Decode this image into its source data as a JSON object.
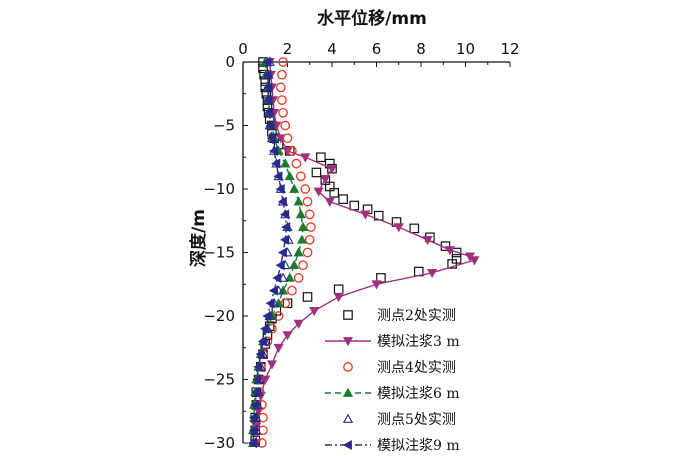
{
  "chart_data": {
    "type": "scatter",
    "title": "",
    "xlabel": "水平位移/mm",
    "ylabel": "深度/m",
    "xlim": [
      0,
      12
    ],
    "ylim": [
      -30,
      0
    ],
    "x_ticks": [
      0,
      2,
      4,
      6,
      8,
      10,
      12
    ],
    "y_ticks": [
      0,
      -5,
      -10,
      -15,
      -20,
      -25,
      -30
    ],
    "x_axis_position": "top",
    "grid": false,
    "legend_position": "bottom-right",
    "series": [
      {
        "name": "测点2处实测",
        "style": "open-square",
        "color": "#111111",
        "points": [
          [
            0.9,
            0
          ],
          [
            0.9,
            -0.5
          ],
          [
            0.95,
            -1
          ],
          [
            1.0,
            -1.5
          ],
          [
            1.0,
            -2
          ],
          [
            1.05,
            -2.5
          ],
          [
            1.1,
            -3
          ],
          [
            1.1,
            -3.5
          ],
          [
            1.15,
            -4
          ],
          [
            1.2,
            -4.5
          ],
          [
            1.3,
            -5
          ],
          [
            1.3,
            -5.5
          ],
          [
            1.4,
            -6
          ],
          [
            1.6,
            -6.5
          ],
          [
            2.1,
            -7
          ],
          [
            3.5,
            -7.5
          ],
          [
            3.9,
            -8
          ],
          [
            4.0,
            -8.4
          ],
          [
            3.3,
            -8.7
          ],
          [
            3.7,
            -9.3
          ],
          [
            3.9,
            -9.8
          ],
          [
            4.1,
            -10.3
          ],
          [
            4.5,
            -10.8
          ],
          [
            5.0,
            -11.3
          ],
          [
            5.6,
            -11.6
          ],
          [
            6.1,
            -12.1
          ],
          [
            6.9,
            -12.6
          ],
          [
            7.7,
            -13.1
          ],
          [
            8.4,
            -13.8
          ],
          [
            9.1,
            -14.5
          ],
          [
            9.6,
            -15.0
          ],
          [
            9.6,
            -15.5
          ],
          [
            9.4,
            -15.9
          ],
          [
            7.9,
            -16.5
          ],
          [
            6.2,
            -17.0
          ],
          [
            4.3,
            -17.9
          ],
          [
            2.9,
            -18.5
          ],
          [
            2.0,
            -19.0
          ],
          [
            1.5,
            -19.6
          ],
          [
            1.3,
            -20.2
          ],
          [
            1.2,
            -20.8
          ],
          [
            1.1,
            -21.5
          ],
          [
            1.0,
            -22.2
          ],
          [
            0.9,
            -23
          ],
          [
            0.8,
            -24
          ],
          [
            0.7,
            -25
          ],
          [
            0.6,
            -26
          ],
          [
            0.6,
            -27
          ],
          [
            0.55,
            -28
          ],
          [
            0.55,
            -29
          ],
          [
            0.55,
            -29.8
          ]
        ]
      },
      {
        "name": "模拟注浆3 m",
        "style": "filled-down-triangle-line",
        "color": "#a0307e",
        "points": [
          [
            1.2,
            0
          ],
          [
            1.25,
            -1
          ],
          [
            1.3,
            -2
          ],
          [
            1.35,
            -3
          ],
          [
            1.4,
            -4
          ],
          [
            1.5,
            -5
          ],
          [
            1.7,
            -6
          ],
          [
            2.0,
            -7
          ],
          [
            2.8,
            -7.5
          ],
          [
            4.0,
            -8.4
          ],
          [
            3.7,
            -9.2
          ],
          [
            3.4,
            -10.2
          ],
          [
            3.9,
            -11
          ],
          [
            5.5,
            -12
          ],
          [
            7.0,
            -13
          ],
          [
            8.3,
            -14
          ],
          [
            9.3,
            -14.8
          ],
          [
            10.2,
            -15.3
          ],
          [
            10.4,
            -15.6
          ],
          [
            8.5,
            -16.6
          ],
          [
            6.0,
            -17.5
          ],
          [
            4.3,
            -18.5
          ],
          [
            3.2,
            -19.6
          ],
          [
            2.5,
            -20.6
          ],
          [
            2.0,
            -21.5
          ],
          [
            1.6,
            -22.5
          ],
          [
            1.3,
            -23.8
          ],
          [
            1.0,
            -25
          ],
          [
            0.8,
            -26.3
          ],
          [
            0.7,
            -27.5
          ],
          [
            0.6,
            -28.7
          ],
          [
            0.6,
            -30
          ]
        ]
      },
      {
        "name": "测点4处实测",
        "style": "open-circle",
        "color": "#e8361e",
        "points": [
          [
            1.8,
            0
          ],
          [
            1.75,
            -1
          ],
          [
            1.7,
            -2
          ],
          [
            1.75,
            -3
          ],
          [
            1.8,
            -4
          ],
          [
            1.9,
            -5
          ],
          [
            2.0,
            -6
          ],
          [
            2.2,
            -7
          ],
          [
            2.4,
            -8
          ],
          [
            2.6,
            -9
          ],
          [
            2.8,
            -10
          ],
          [
            2.9,
            -11
          ],
          [
            3.0,
            -12
          ],
          [
            3.05,
            -13
          ],
          [
            3.0,
            -14
          ],
          [
            2.9,
            -15
          ],
          [
            2.7,
            -16
          ],
          [
            2.5,
            -17
          ],
          [
            2.2,
            -18
          ],
          [
            1.9,
            -19
          ],
          [
            1.6,
            -20
          ],
          [
            1.3,
            -21
          ],
          [
            1.1,
            -22
          ],
          [
            0.9,
            -23
          ],
          [
            0.8,
            -24
          ],
          [
            0.7,
            -25
          ],
          [
            0.75,
            -26
          ],
          [
            0.85,
            -27
          ],
          [
            0.9,
            -28
          ],
          [
            0.9,
            -29
          ],
          [
            0.85,
            -30
          ]
        ]
      },
      {
        "name": "模拟注浆6 m",
        "style": "filled-up-triangle-dash",
        "color": "#1a7a2e",
        "points": [
          [
            1.0,
            0
          ],
          [
            1.05,
            -1
          ],
          [
            1.1,
            -2
          ],
          [
            1.15,
            -3
          ],
          [
            1.2,
            -4
          ],
          [
            1.3,
            -5
          ],
          [
            1.4,
            -6
          ],
          [
            1.6,
            -7
          ],
          [
            1.9,
            -8
          ],
          [
            2.1,
            -9
          ],
          [
            2.3,
            -10
          ],
          [
            2.5,
            -11
          ],
          [
            2.6,
            -12
          ],
          [
            2.7,
            -13
          ],
          [
            2.65,
            -14
          ],
          [
            2.5,
            -15
          ],
          [
            2.3,
            -16
          ],
          [
            2.1,
            -17
          ],
          [
            1.8,
            -18
          ],
          [
            1.6,
            -19
          ],
          [
            1.3,
            -20
          ],
          [
            1.1,
            -21
          ],
          [
            0.9,
            -22
          ],
          [
            0.8,
            -23
          ],
          [
            0.7,
            -24
          ],
          [
            0.6,
            -25
          ],
          [
            0.55,
            -26
          ],
          [
            0.5,
            -27
          ],
          [
            0.5,
            -28
          ],
          [
            0.45,
            -29
          ],
          [
            0.45,
            -30
          ]
        ]
      },
      {
        "name": "测点5处实测",
        "style": "open-up-triangle",
        "color": "#2a2a8a",
        "points": [
          [
            1.2,
            0
          ],
          [
            1.15,
            -1
          ],
          [
            1.1,
            -2
          ],
          [
            1.1,
            -3
          ],
          [
            1.15,
            -4
          ],
          [
            1.2,
            -5
          ],
          [
            1.3,
            -6
          ],
          [
            1.4,
            -7
          ],
          [
            1.5,
            -8
          ],
          [
            1.6,
            -9
          ],
          [
            1.7,
            -10
          ],
          [
            1.8,
            -11
          ],
          [
            1.9,
            -12
          ],
          [
            2.0,
            -13
          ],
          [
            2.05,
            -14
          ],
          [
            2.0,
            -15
          ],
          [
            1.9,
            -16
          ],
          [
            1.8,
            -17
          ],
          [
            1.6,
            -18
          ],
          [
            1.4,
            -19
          ],
          [
            1.2,
            -20
          ],
          [
            1.1,
            -21
          ],
          [
            1.0,
            -22
          ],
          [
            0.9,
            -23
          ],
          [
            0.8,
            -24
          ],
          [
            0.75,
            -25
          ],
          [
            0.7,
            -26
          ],
          [
            0.65,
            -27
          ],
          [
            0.6,
            -28
          ],
          [
            0.6,
            -29
          ],
          [
            0.55,
            -30
          ]
        ]
      },
      {
        "name": "模拟注浆9 m",
        "style": "filled-left-triangle-dashdot",
        "color": "#2a2a8a",
        "points": [
          [
            1.1,
            0
          ],
          [
            1.1,
            -1
          ],
          [
            1.15,
            -2
          ],
          [
            1.15,
            -3
          ],
          [
            1.2,
            -4
          ],
          [
            1.25,
            -5
          ],
          [
            1.3,
            -6
          ],
          [
            1.4,
            -7
          ],
          [
            1.5,
            -8
          ],
          [
            1.6,
            -9
          ],
          [
            1.7,
            -10
          ],
          [
            1.8,
            -11
          ],
          [
            1.9,
            -12
          ],
          [
            1.95,
            -13
          ],
          [
            1.9,
            -14
          ],
          [
            1.8,
            -15
          ],
          [
            1.7,
            -16
          ],
          [
            1.55,
            -17
          ],
          [
            1.4,
            -18
          ],
          [
            1.25,
            -19
          ],
          [
            1.1,
            -20
          ],
          [
            1.0,
            -21
          ],
          [
            0.9,
            -22
          ],
          [
            0.8,
            -23
          ],
          [
            0.7,
            -24
          ],
          [
            0.65,
            -25
          ],
          [
            0.6,
            -26
          ],
          [
            0.55,
            -27
          ],
          [
            0.5,
            -28
          ],
          [
            0.5,
            -29
          ],
          [
            0.45,
            -30
          ]
        ]
      }
    ]
  }
}
